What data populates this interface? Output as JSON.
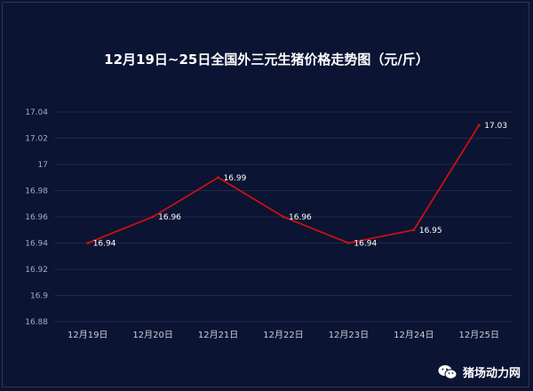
{
  "chart_data": {
    "type": "line",
    "title": "12月19日~25日全国外三元生猪价格走势图（元/斤）",
    "categories": [
      "12月19日",
      "12月20日",
      "12月21日",
      "12月22日",
      "12月23日",
      "12月24日",
      "12月25日"
    ],
    "series": [
      {
        "values": [
          16.94,
          16.96,
          16.99,
          16.96,
          16.94,
          16.95,
          17.03
        ]
      }
    ],
    "ylim": [
      16.88,
      17.04
    ],
    "yticks": [
      "17.04",
      "17.02",
      "17",
      "16.98",
      "16.96",
      "16.94",
      "16.92",
      "16.9",
      "16.88"
    ],
    "data_labels": [
      "16.94",
      "16.96",
      "16.99",
      "16.96",
      "16.94",
      "16.95",
      "17.03"
    ],
    "grid": true,
    "colors": {
      "line": "#cc1010",
      "background": "#0b1433",
      "grid": "#1f2a47"
    }
  },
  "watermark": {
    "text": "猪场动力网",
    "icon": "wechat-icon"
  }
}
